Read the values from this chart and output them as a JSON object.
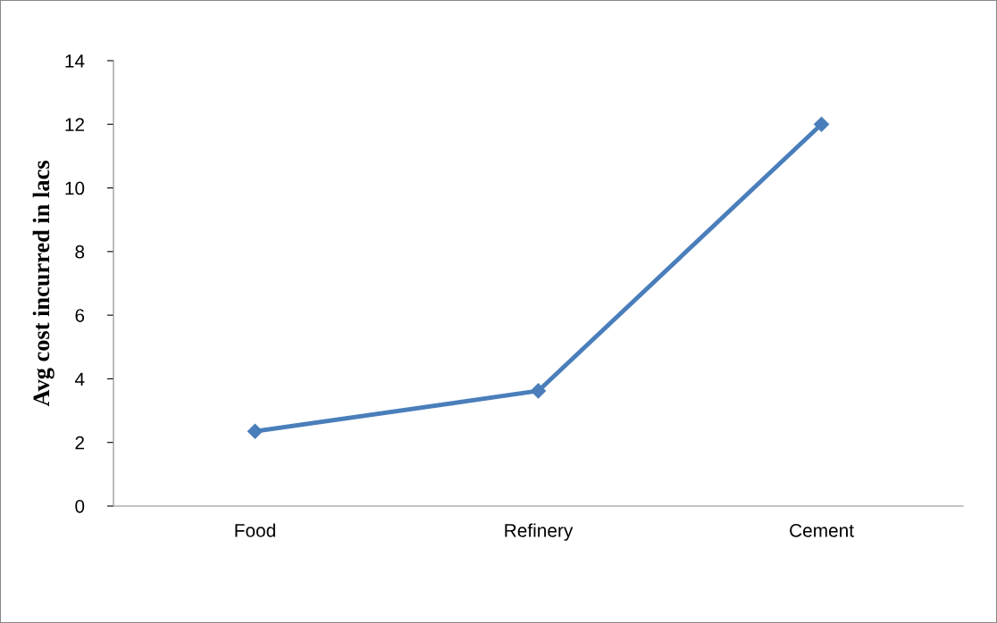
{
  "chart_data": {
    "type": "line",
    "ylabel": "Avg cost incurred in lacs",
    "categories": [
      "Food",
      "Refinery",
      "Cement"
    ],
    "series": [
      {
        "color": "#4a7ebb",
        "values": [
          2.35,
          3.62,
          12
        ]
      }
    ],
    "ylim": [
      0,
      14
    ],
    "yticks": [
      0,
      2,
      4,
      6,
      8,
      10,
      12,
      14
    ],
    "grid": false,
    "legend": false,
    "marker": "diamond",
    "line_style": "solid"
  }
}
